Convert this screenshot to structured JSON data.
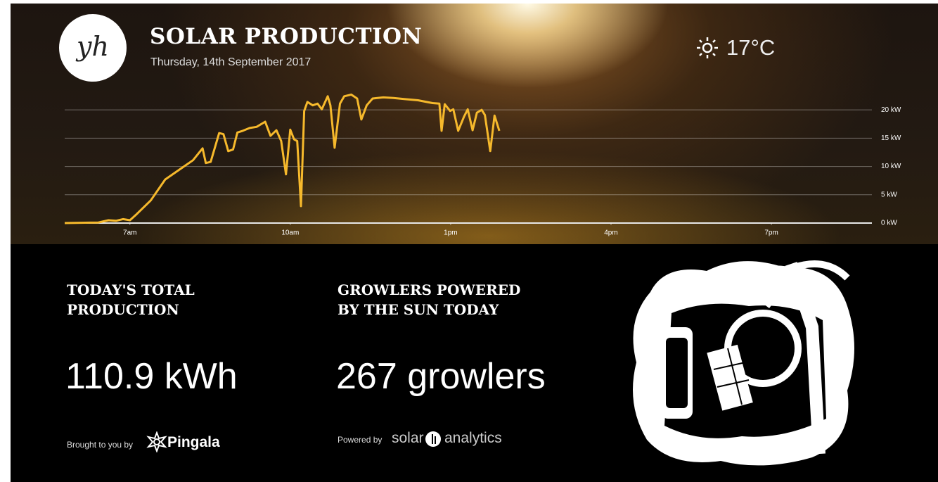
{
  "header": {
    "logo": "yh",
    "title": "SOLAR PRODUCTION",
    "date": "Thursday, 14th September 2017"
  },
  "weather": {
    "temperature": "17°C"
  },
  "chart_data": {
    "type": "line",
    "x": [
      5.78,
      6.41,
      6.6,
      6.74,
      6.87,
      7.0,
      7.13,
      7.39,
      7.66,
      7.92,
      8.18,
      8.36,
      8.42,
      8.51,
      8.67,
      8.75,
      8.84,
      8.93,
      9.01,
      9.11,
      9.24,
      9.37,
      9.53,
      9.63,
      9.74,
      9.83,
      9.92,
      10.0,
      10.07,
      10.13,
      10.2,
      10.26,
      10.32,
      10.42,
      10.51,
      10.59,
      10.7,
      10.75,
      10.83,
      10.93,
      11.01,
      11.14,
      11.25,
      11.33,
      11.43,
      11.54,
      11.74,
      11.93,
      12.13,
      12.39,
      12.66,
      12.79,
      12.83,
      12.89,
      12.99,
      13.05,
      13.14,
      13.25,
      13.32,
      13.41,
      13.49,
      13.58,
      13.64,
      13.74,
      13.82,
      13.91
    ],
    "series": [
      {
        "color": "#f6b92c",
        "values": [
          0,
          0.1,
          0.5,
          0.4,
          0.7,
          0.5,
          1.6,
          4.0,
          7.7,
          9.4,
          11.1,
          13.2,
          10.6,
          10.8,
          15.9,
          15.7,
          12.7,
          13.0,
          16.0,
          16.3,
          16.8,
          17.0,
          17.9,
          15.4,
          16.4,
          14.5,
          8.6,
          16.5,
          14.8,
          14.5,
          3.0,
          19.8,
          21.4,
          20.8,
          21.1,
          20.1,
          22.4,
          20.8,
          13.3,
          21.1,
          22.4,
          22.7,
          22.0,
          18.3,
          20.8,
          22.0,
          22.2,
          22.1,
          21.9,
          21.7,
          21.2,
          21.1,
          16.3,
          21.0,
          19.8,
          20.1,
          16.3,
          18.8,
          20.1,
          16.4,
          19.5,
          20.0,
          19.1,
          12.7,
          19.0,
          16.3
        ]
      }
    ],
    "xlim": [
      5.78,
      20.88
    ],
    "xticks": [
      {
        "value": 7,
        "label": "7am"
      },
      {
        "value": 10,
        "label": "10am"
      },
      {
        "value": 13,
        "label": "1pm"
      },
      {
        "value": 16,
        "label": "4pm"
      },
      {
        "value": 19,
        "label": "7pm"
      }
    ],
    "ylim": [
      0,
      23
    ],
    "yticks": [
      {
        "value": 0,
        "label": "0 kW"
      },
      {
        "value": 5,
        "label": "5 kW"
      },
      {
        "value": 10,
        "label": "10 kW"
      },
      {
        "value": 15,
        "label": "15 kW"
      },
      {
        "value": 20,
        "label": "20 kW"
      }
    ],
    "grid": true
  },
  "stats": [
    {
      "label": [
        "TODAY'S TOTAL",
        "PRODUCTION"
      ],
      "value": "110.9 kWh",
      "credit": "Brought to you by",
      "brand": [
        "Pingala"
      ]
    },
    {
      "label": [
        "GROWLERS POWERED",
        "BY THE SUN TODAY"
      ],
      "value": "267 growlers",
      "credit": "Powered by",
      "brand": [
        "solar",
        "analytics"
      ]
    }
  ]
}
